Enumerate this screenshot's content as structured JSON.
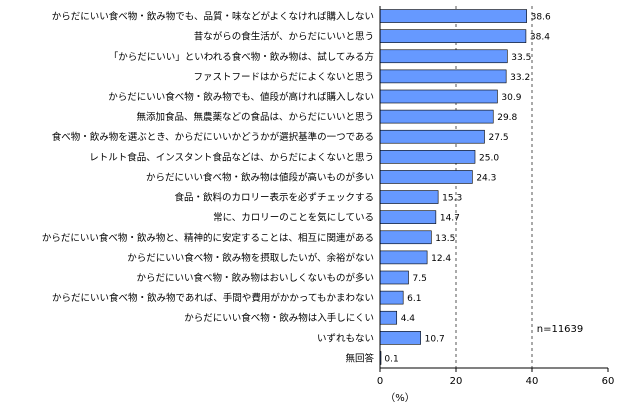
{
  "chart_data": {
    "type": "bar",
    "orientation": "horizontal",
    "categories": [
      "からだにいい食べ物・飲み物でも、品質・味などがよくなければ購入しない",
      "昔ながらの食生活が、からだにいいと思う",
      "「からだにいい」といわれる食べ物・飲み物は、試してみる方",
      "ファストフードはからだによくないと思う",
      "からだにいい食べ物・飲み物でも、値段が高ければ購入しない",
      "無添加食品、無農薬などの食品は、からだにいいと思う",
      "食べ物・飲み物を選ぶとき、からだにいいかどうかが選択基準の一つである",
      "レトルト食品、インスタント食品などは、からだによくないと思う",
      "からだにいい食べ物・飲み物は値段が高いものが多い",
      "食品・飲料のカロリー表示を必ずチェックする",
      "常に、カロリーのことを気にしている",
      "からだにいい食べ物・飲み物と、精神的に安定することは、相互に関連がある",
      "からだにいい食べ物・飲み物を摂取したいが、余裕がない",
      "からだにいい食べ物・飲み物はおいしくないものが多い",
      "からだにいい食べ物・飲み物であれば、手間や費用がかかってもかまわない",
      "からだにいい食べ物・飲み物は入手しにくい",
      "いずれもない",
      "無回答"
    ],
    "values": [
      38.6,
      38.4,
      33.5,
      33.2,
      30.9,
      29.8,
      27.5,
      25.0,
      24.3,
      15.3,
      14.7,
      13.5,
      12.4,
      7.5,
      6.1,
      4.4,
      10.7,
      0.1
    ],
    "value_labels": [
      "38.6",
      "38.4",
      "33.5",
      "33.2",
      "30.9",
      "29.8",
      "27.5",
      "25.0",
      "24.3",
      "15.3",
      "14.7",
      "13.5",
      "12.4",
      "7.5",
      "6.1",
      "4.4",
      "10.7",
      "0.1"
    ],
    "xlim": [
      0,
      60
    ],
    "x_ticks": [
      "0",
      "20",
      "40",
      "60"
    ],
    "x_tick_values": [
      0,
      20,
      40,
      60
    ],
    "x_unit": "（%）",
    "note": "n=11639",
    "grid": "dashed vertical lines at 20 and 40",
    "bar_color": "#6699ff",
    "bar_edge_color": "#000000"
  }
}
